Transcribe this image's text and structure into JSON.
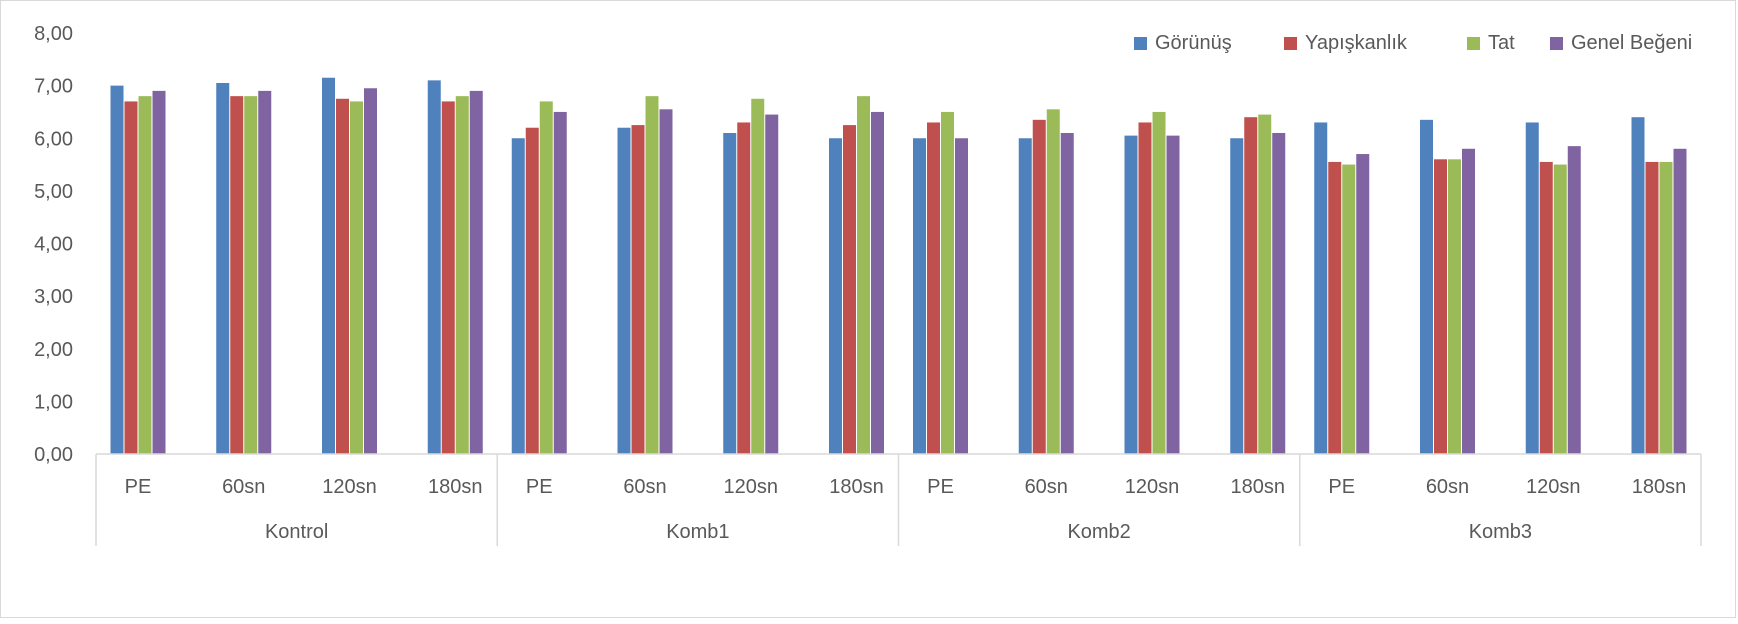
{
  "chart_data": {
    "type": "bar",
    "title": "",
    "xlabel": "",
    "ylabel": "",
    "ylim": [
      0,
      8
    ],
    "yticks": [
      "0,00",
      "1,00",
      "2,00",
      "3,00",
      "4,00",
      "5,00",
      "6,00",
      "7,00",
      "8,00"
    ],
    "grid": false,
    "legend_position": "top-right",
    "groups": [
      {
        "label": "Kontrol",
        "categories": [
          "PE",
          "60sn",
          "120sn",
          "180sn"
        ]
      },
      {
        "label": "Komb1",
        "categories": [
          "PE",
          "60sn",
          "120sn",
          "180sn"
        ]
      },
      {
        "label": "Komb2",
        "categories": [
          "PE",
          "60sn",
          "120sn",
          "180sn"
        ]
      },
      {
        "label": "Komb3",
        "categories": [
          "PE",
          "60sn",
          "120sn",
          "180sn"
        ]
      }
    ],
    "series": [
      {
        "name": "Görünüş",
        "color": "#4f81bd",
        "values": [
          7.0,
          7.05,
          7.15,
          7.1,
          6.0,
          6.2,
          6.1,
          6.0,
          6.0,
          6.0,
          6.05,
          6.0,
          6.3,
          6.35,
          6.3,
          6.4
        ]
      },
      {
        "name": "Yapışkanlık",
        "color": "#c0504d",
        "values": [
          6.7,
          6.8,
          6.75,
          6.7,
          6.2,
          6.25,
          6.3,
          6.25,
          6.3,
          6.35,
          6.3,
          6.4,
          5.55,
          5.6,
          5.55,
          5.55
        ]
      },
      {
        "name": "Tat",
        "color": "#9bbb59",
        "values": [
          6.8,
          6.8,
          6.7,
          6.8,
          6.7,
          6.8,
          6.75,
          6.8,
          6.5,
          6.55,
          6.5,
          6.45,
          5.5,
          5.6,
          5.5,
          5.55
        ]
      },
      {
        "name": "Genel Beğeni",
        "color": "#8064a2",
        "values": [
          6.9,
          6.9,
          6.95,
          6.9,
          6.5,
          6.55,
          6.45,
          6.5,
          6.0,
          6.1,
          6.05,
          6.1,
          5.7,
          5.8,
          5.85,
          5.8
        ]
      }
    ]
  }
}
